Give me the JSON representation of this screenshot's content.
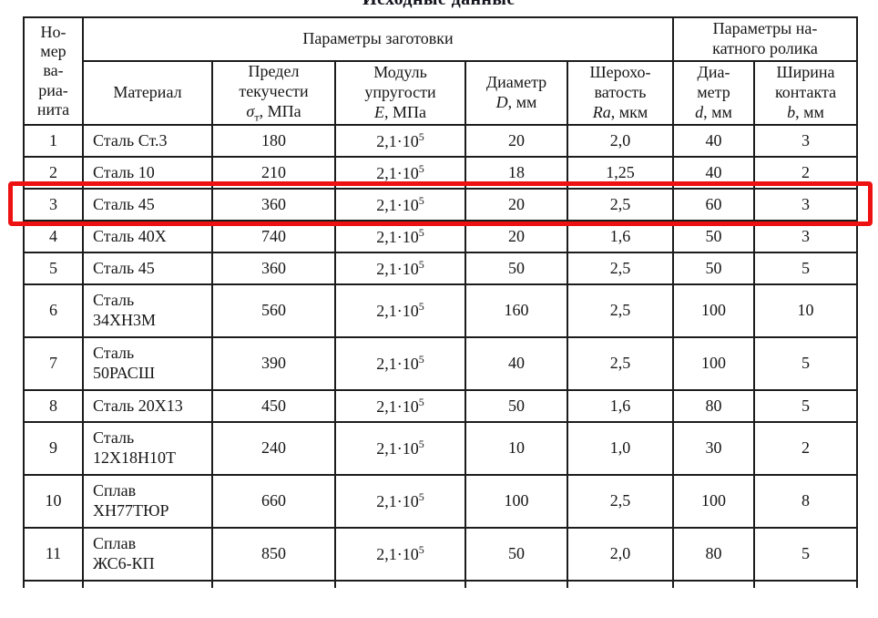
{
  "page_title": "Исходные данные",
  "accent_color": "#ee1111",
  "table": {
    "header": {
      "col_variant_lines": [
        "Но-",
        "мер",
        "ва-",
        "риа-",
        "нита"
      ],
      "group_workpiece": "Параметры заготовки",
      "group_roller_lines": [
        "Параметры на-",
        "катного ролика"
      ],
      "col_material": "Материал",
      "col_yield": {
        "lines": [
          "Предел",
          "текучести"
        ],
        "sym": "σ",
        "sub": "т",
        "unit": ", МПа"
      },
      "col_modulus": {
        "lines": [
          "Модуль",
          "упругости"
        ],
        "sym": "E",
        "sub": "",
        "unit": ", МПа"
      },
      "col_diameter": {
        "lines": [
          "Диаметр"
        ],
        "sym": "D",
        "sub": "",
        "unit": ", мм"
      },
      "col_roughness": {
        "lines": [
          "Шерохо-",
          "ватость"
        ],
        "sym": "Ra",
        "sub": "",
        "unit": ", мкм"
      },
      "col_roller_diameter": {
        "lines": [
          "Диа-",
          "метр"
        ],
        "sym": "d",
        "sub": "",
        "unit": ", мм"
      },
      "col_contact_width": {
        "lines": [
          "Ширина",
          "контакта"
        ],
        "sym": "b",
        "sub": "",
        "unit": ", мм"
      }
    },
    "rows": [
      {
        "num": "1",
        "material": [
          "Сталь Ст.3"
        ],
        "yield": "180",
        "modulus": "2,1·10^5",
        "diameter": "20",
        "roughness": "2,0",
        "roller_d": "40",
        "width_b": "3",
        "highlighted": false
      },
      {
        "num": "2",
        "material": [
          "Сталь 10"
        ],
        "yield": "210",
        "modulus": "2,1·10^5",
        "diameter": "18",
        "roughness": "1,25",
        "roller_d": "40",
        "width_b": "2",
        "highlighted": false
      },
      {
        "num": "3",
        "material": [
          "Сталь 45"
        ],
        "yield": "360",
        "modulus": "2,1·10^5",
        "diameter": "20",
        "roughness": "2,5",
        "roller_d": "60",
        "width_b": "3",
        "highlighted": true
      },
      {
        "num": "4",
        "material": [
          "Сталь 40Х"
        ],
        "yield": "740",
        "modulus": "2,1·10^5",
        "diameter": "20",
        "roughness": "1,6",
        "roller_d": "50",
        "width_b": "3",
        "highlighted": false
      },
      {
        "num": "5",
        "material": [
          "Сталь 45"
        ],
        "yield": "360",
        "modulus": "2,1·10^5",
        "diameter": "50",
        "roughness": "2,5",
        "roller_d": "50",
        "width_b": "5",
        "highlighted": false
      },
      {
        "num": "6",
        "material": [
          "Сталь",
          "34ХН3М"
        ],
        "yield": "560",
        "modulus": "2,1·10^5",
        "diameter": "160",
        "roughness": "2,5",
        "roller_d": "100",
        "width_b": "10",
        "highlighted": false
      },
      {
        "num": "7",
        "material": [
          "Сталь",
          "50РАСШ"
        ],
        "yield": "390",
        "modulus": "2,1·10^5",
        "diameter": "40",
        "roughness": "2,5",
        "roller_d": "100",
        "width_b": "5",
        "highlighted": false
      },
      {
        "num": "8",
        "material": [
          "Сталь 20Х13"
        ],
        "yield": "450",
        "modulus": "2,1·10^5",
        "diameter": "50",
        "roughness": "1,6",
        "roller_d": "80",
        "width_b": "5",
        "highlighted": false
      },
      {
        "num": "9",
        "material": [
          "Сталь",
          "12Х18Н10Т"
        ],
        "yield": "240",
        "modulus": "2,1·10^5",
        "diameter": "10",
        "roughness": "1,0",
        "roller_d": "30",
        "width_b": "2",
        "highlighted": false
      },
      {
        "num": "10",
        "material": [
          "Сплав",
          "ХН77ТЮР"
        ],
        "yield": "660",
        "modulus": "2,1·10^5",
        "diameter": "100",
        "roughness": "2,5",
        "roller_d": "100",
        "width_b": "8",
        "highlighted": false
      },
      {
        "num": "11",
        "material": [
          "Сплав",
          "ЖС6-КП"
        ],
        "yield": "850",
        "modulus": "2,1·10^5",
        "diameter": "50",
        "roughness": "2,0",
        "roller_d": "80",
        "width_b": "5",
        "highlighted": false
      }
    ]
  }
}
